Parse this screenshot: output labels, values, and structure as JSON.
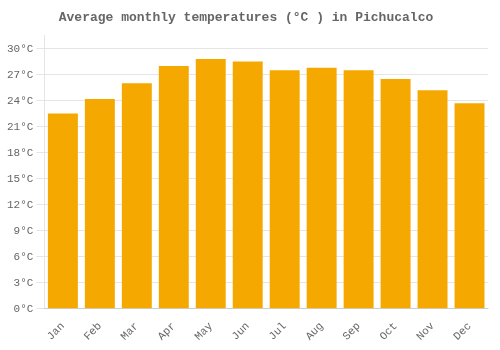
{
  "chart_data": {
    "type": "bar",
    "title": "Average monthly temperatures (°C ) in Pichucalco",
    "categories": [
      "Jan",
      "Feb",
      "Mar",
      "Apr",
      "May",
      "Jun",
      "Jul",
      "Aug",
      "Sep",
      "Oct",
      "Nov",
      "Dec"
    ],
    "values": [
      22.5,
      24.2,
      26.0,
      28.0,
      28.8,
      28.5,
      27.5,
      27.8,
      27.5,
      26.5,
      25.2,
      23.7
    ],
    "color": "#F5A800",
    "ylim": [
      0,
      31.5
    ],
    "yticks": [
      {
        "value": 0,
        "label": "0°C"
      },
      {
        "value": 3,
        "label": "3°C"
      },
      {
        "value": 6,
        "label": "6°C"
      },
      {
        "value": 9,
        "label": "9°C"
      },
      {
        "value": 12,
        "label": "12°C"
      },
      {
        "value": 15,
        "label": "15°C"
      },
      {
        "value": 18,
        "label": "18°C"
      },
      {
        "value": 21,
        "label": "21°C"
      },
      {
        "value": 24,
        "label": "24°C"
      },
      {
        "value": 27,
        "label": "27°C"
      },
      {
        "value": 30,
        "label": "30°C"
      }
    ],
    "grid": true
  }
}
